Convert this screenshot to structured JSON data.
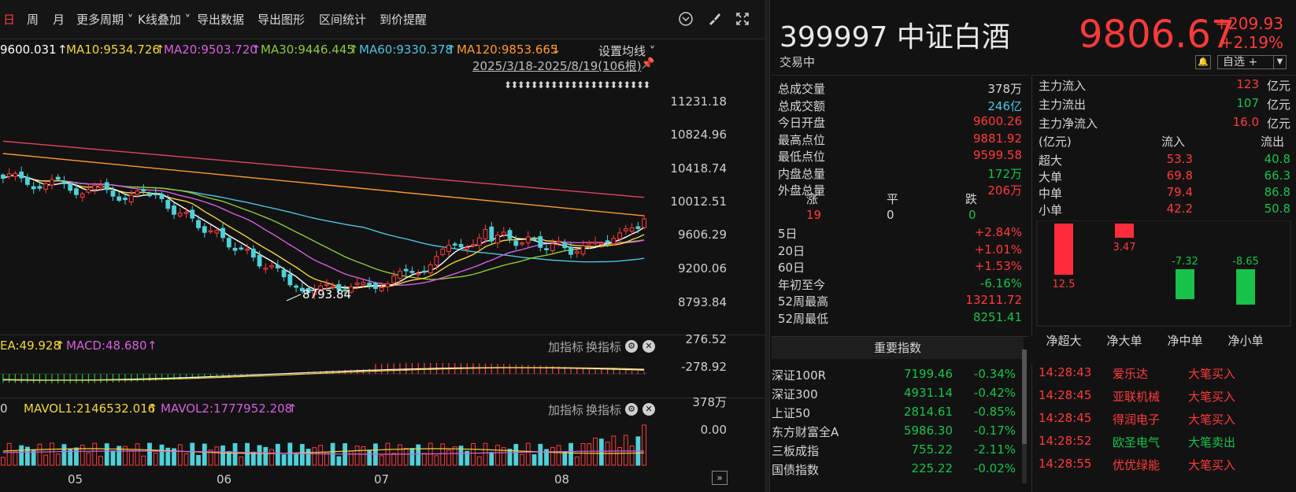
{
  "toolbar": {
    "items": [
      "日",
      "周",
      "月",
      "更多周期 ˅",
      "K线叠加 ˅",
      "导出数据",
      "导出图形",
      "区间统计",
      "到价提醒"
    ]
  },
  "ma_line": {
    "ma5": "9600.031",
    "ma10": "MA10:9534.726",
    "ma20": "MA20:9503.720",
    "ma30": "MA30:9446.445",
    "ma60": "MA60:9330.378",
    "ma120": "MA120:9853.665",
    "settings": "设置均线 ˅",
    "colors": {
      "ma5": "#ffffff",
      "ma10": "#f2d43d",
      "ma20": "#d65fe0",
      "ma30": "#8fc83a",
      "ma60": "#4fc3e0",
      "ma120": "#ff9a2e",
      "ma250": "#e0455e"
    }
  },
  "range_label": "2025/3/18-2025/8/19(106根)",
  "y_axis": [
    "11231.18",
    "10824.96",
    "10418.74",
    "10012.51",
    "9606.29",
    "9200.06",
    "8793.84"
  ],
  "min_marker": "8793.84",
  "macd": {
    "dea": "EA:49.928",
    "macd": "MACD:48.680",
    "add": "加指标",
    "switch": "换指标",
    "axis_top": "276.52",
    "axis_bottom": "-278.92"
  },
  "vol": {
    "vol": "0",
    "mavol1": "MAVOL1:2146532.016",
    "mavol2": "MAVOL2:1777952.208",
    "add": "加指标",
    "switch": "换指标",
    "axis_top": "378万",
    "axis_bottom": "0.00"
  },
  "x_axis": [
    "05",
    "06",
    "07",
    "08"
  ],
  "quote": {
    "code_name": "399997 中证白酒",
    "price": "9806.67",
    "change": "+209.93",
    "change_pct": "+2.19%",
    "status": "交易中",
    "watch_label": "自选 +"
  },
  "stats": [
    {
      "k": "总成交量",
      "v": "378万",
      "c": "white"
    },
    {
      "k": "总成交额",
      "v": "246亿",
      "c": "cyan"
    },
    {
      "k": "今日开盘",
      "v": "9600.26",
      "c": "red"
    },
    {
      "k": "最高点位",
      "v": "9881.92",
      "c": "red"
    },
    {
      "k": "最低点位",
      "v": "9599.58",
      "c": "red"
    },
    {
      "k": "内盘总量",
      "v": "172万",
      "c": "green"
    },
    {
      "k": "外盘总量",
      "v": "206万",
      "c": "red"
    }
  ],
  "breadth": {
    "up_label": "涨",
    "flat_label": "平",
    "down_label": "跌",
    "up": "19",
    "flat": "0",
    "down": "0"
  },
  "perf": [
    {
      "k": "5日",
      "v": "+2.84%",
      "c": "red"
    },
    {
      "k": "20日",
      "v": "+1.01%",
      "c": "red"
    },
    {
      "k": "60日",
      "v": "+1.53%",
      "c": "red"
    },
    {
      "k": "年初至今",
      "v": "-6.16%",
      "c": "green"
    },
    {
      "k": "52周最高",
      "v": "13211.72",
      "c": "red"
    },
    {
      "k": "52周最低",
      "v": "8251.41",
      "c": "green"
    }
  ],
  "flow": {
    "main": [
      {
        "k": "主力流入",
        "v": "123",
        "u": "亿元",
        "c": "red"
      },
      {
        "k": "主力流出",
        "v": "107",
        "u": "亿元",
        "c": "green"
      },
      {
        "k": "主力净流入",
        "v": "16.0",
        "u": "亿元",
        "c": "red"
      }
    ],
    "header": {
      "unit": "(亿元)",
      "in": "流入",
      "out": "流出"
    },
    "rows": [
      {
        "k": "超大",
        "in": "53.3",
        "out": "40.8"
      },
      {
        "k": "大单",
        "in": "69.8",
        "out": "66.3"
      },
      {
        "k": "中单",
        "in": "79.4",
        "out": "86.8"
      },
      {
        "k": "小单",
        "in": "42.2",
        "out": "50.8"
      }
    ],
    "net": [
      {
        "label": "净超大",
        "value": 12.5,
        "text": "12.5"
      },
      {
        "label": "净大单",
        "value": 3.47,
        "text": "3.47"
      },
      {
        "label": "净中单",
        "value": -7.32,
        "text": "-7.32"
      },
      {
        "label": "净小单",
        "value": -8.65,
        "text": "-8.65"
      }
    ]
  },
  "index_title": "重要指数",
  "indices": [
    {
      "n": "深证100R",
      "p": "7199.46",
      "c": "-0.34%"
    },
    {
      "n": "深证300",
      "p": "4931.14",
      "c": "-0.42%"
    },
    {
      "n": "上证50",
      "p": "2814.61",
      "c": "-0.85%"
    },
    {
      "n": "东方财富全A",
      "p": "5986.30",
      "c": "-0.17%"
    },
    {
      "n": "三板成指",
      "p": "755.22",
      "c": "-2.11%"
    },
    {
      "n": "国债指数",
      "p": "225.22",
      "c": "-0.02%"
    }
  ],
  "trades": [
    {
      "t": "14:28:43",
      "name": "爱乐达",
      "type": "大笔买入",
      "c": "red"
    },
    {
      "t": "14:28:45",
      "name": "亚联机械",
      "type": "大笔买入",
      "c": "red"
    },
    {
      "t": "14:28:45",
      "name": "得润电子",
      "type": "大笔买入",
      "c": "red"
    },
    {
      "t": "14:28:52",
      "name": "欧圣电气",
      "type": "大笔卖出",
      "c": "green"
    },
    {
      "t": "14:28:55",
      "name": "优优绿能",
      "type": "大笔买入",
      "c": "red"
    }
  ]
}
